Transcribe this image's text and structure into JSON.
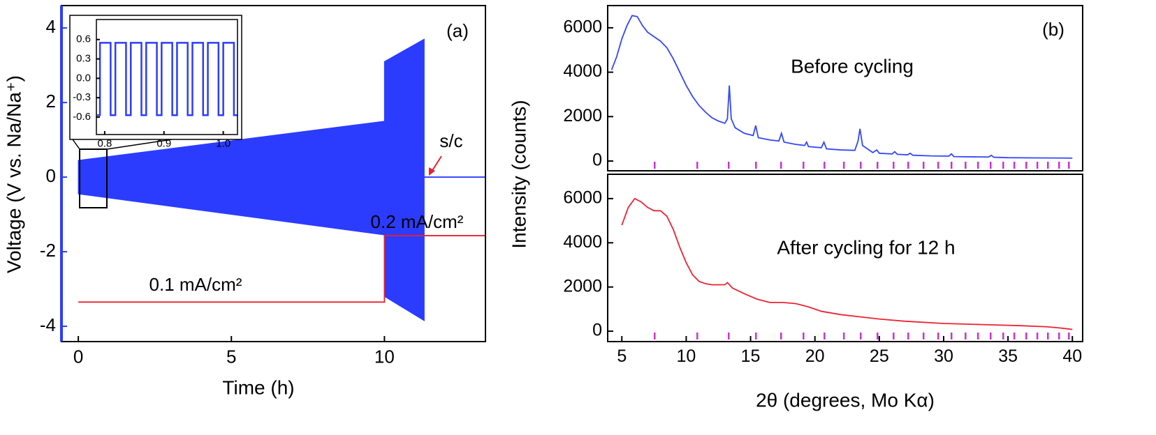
{
  "chart_data": [
    {
      "type": "line",
      "xlabel": "Time (h)",
      "ylabel": "Voltage (V vs. Na/Na⁺)",
      "y_axis_color": "#2b3cff",
      "xlim": [
        -0.55,
        13.3
      ],
      "ylim": [
        -4.41,
        4.6
      ],
      "xticks": [
        0,
        5,
        10
      ],
      "yticks": [
        -4,
        -2,
        0,
        2,
        4
      ],
      "series": [
        {
          "color": "#2b3cff",
          "x": [
            0,
            10,
            10,
            11.3
          ],
          "upper": [
            0.45,
            1.5,
            3.1,
            3.7
          ],
          "lower": [
            -0.45,
            -1.55,
            -3.2,
            -3.85
          ]
        },
        {
          "color": "#2b3cff",
          "x": [
            11.3,
            13.3
          ],
          "values": [
            0,
            0
          ]
        },
        {
          "color": "#e8202a",
          "x": [
            0,
            10,
            10,
            13.3
          ],
          "values": [
            -3.35,
            -3.35,
            -1.57,
            -1.57
          ]
        }
      ],
      "annotations": [
        "(a)",
        "s/c",
        "0.1 mA/cm²",
        "0.2 mA/cm²"
      ]
    },
    {
      "type": "line",
      "xlim": [
        0.786,
        1.024
      ],
      "ylim": [
        -0.87,
        0.91
      ],
      "xticks": [
        0.8,
        0.9,
        {
          "value": 1,
          "label": "1.0"
        }
      ],
      "yticks": [
        0.6,
        0.3,
        {
          "value": 0,
          "label": "0.0"
        },
        -0.3,
        -0.6
      ],
      "series": [
        {
          "color": "#2b3cff",
          "x": [
            0.787,
            0.792,
            0.792,
            0.81,
            0.81,
            0.818,
            0.818,
            0.836,
            0.836,
            0.844,
            0.844,
            0.862,
            0.862,
            0.87,
            0.87,
            0.888,
            0.888,
            0.896,
            0.896,
            0.914,
            0.914,
            0.922,
            0.922,
            0.94,
            0.94,
            0.948,
            0.948,
            0.966,
            0.966,
            0.974,
            0.974,
            0.992,
            0.992,
            1.0,
            1.0,
            1.018,
            1.018,
            1.024
          ],
          "values": [
            -0.57,
            -0.57,
            0.55,
            0.55,
            -0.57,
            -0.57,
            0.55,
            0.55,
            -0.57,
            -0.57,
            0.55,
            0.55,
            -0.57,
            -0.57,
            0.55,
            0.55,
            -0.57,
            -0.57,
            0.55,
            0.55,
            -0.57,
            -0.57,
            0.55,
            0.55,
            -0.57,
            -0.57,
            0.55,
            0.55,
            -0.57,
            -0.57,
            0.55,
            0.55,
            -0.57,
            -0.57,
            0.55,
            0.55,
            -0.57,
            -0.57
          ]
        }
      ]
    },
    {
      "type": "line",
      "ylabel": "Intensity (counts)",
      "xlim": [
        3.9,
        40.8
      ],
      "ylim": [
        -440,
        7000
      ],
      "yticks": [
        0,
        2000,
        4000,
        6000
      ],
      "reference_peaks": [
        7.55,
        10.86,
        13.3,
        15.42,
        17.37,
        19.11,
        20.74,
        22.25,
        23.56,
        24.86,
        26.11,
        27.25,
        28.44,
        29.58,
        30.61,
        31.7,
        32.67,
        33.65,
        34.63,
        35.49,
        36.42,
        37.28,
        38.1,
        38.97,
        39.73
      ],
      "reference_color": "#c832d2",
      "series": [
        {
          "color": "#3346ff",
          "x": [
            4.2,
            4.6,
            5.0,
            5.4,
            5.8,
            6.2,
            6.6,
            7.0,
            7.5,
            8.0,
            8.5,
            9.0,
            9.5,
            10.0,
            10.5,
            11.0,
            11.5,
            12.0,
            12.5,
            13.0,
            13.2,
            13.35,
            13.5,
            13.8,
            14.5,
            15.2,
            15.4,
            15.6,
            16.5,
            17.2,
            17.4,
            17.6,
            18.5,
            19.2,
            19.35,
            19.5,
            20.5,
            20.7,
            20.9,
            22.0,
            23.1,
            23.35,
            23.5,
            23.7,
            24.5,
            24.8,
            25.0,
            26.0,
            26.2,
            26.4,
            27.2,
            27.4,
            27.6,
            29.0,
            30.4,
            30.6,
            30.8,
            32.0,
            33.5,
            33.7,
            33.9,
            35.0,
            37.0,
            40.0
          ],
          "values": [
            4100,
            4700,
            5500,
            6100,
            6550,
            6500,
            6100,
            5800,
            5600,
            5400,
            5100,
            4600,
            4000,
            3400,
            2900,
            2500,
            2200,
            1950,
            1800,
            1700,
            1900,
            3400,
            1900,
            1500,
            1250,
            1150,
            1600,
            1050,
            950,
            900,
            1250,
            850,
            750,
            700,
            850,
            650,
            600,
            850,
            550,
            500,
            480,
            900,
            1450,
            700,
            380,
            500,
            350,
            320,
            420,
            300,
            280,
            350,
            260,
            230,
            220,
            320,
            200,
            190,
            180,
            260,
            170,
            150,
            140,
            130
          ]
        }
      ],
      "annotations": [
        "(b)",
        "Before cycling"
      ]
    },
    {
      "type": "line",
      "xlabel": "2θ (degrees, Mo Kα)",
      "xlim": [
        3.9,
        40.8
      ],
      "ylim": [
        -470,
        7100
      ],
      "xticks": [
        5,
        10,
        15,
        20,
        25,
        30,
        35,
        40
      ],
      "yticks": [
        0,
        2000,
        4000,
        6000
      ],
      "reference_peaks": [
        7.55,
        10.86,
        13.3,
        15.42,
        17.37,
        19.11,
        20.74,
        22.25,
        23.56,
        24.86,
        26.11,
        27.25,
        28.44,
        29.58,
        30.61,
        31.7,
        32.67,
        33.65,
        34.63,
        35.49,
        36.42,
        37.28,
        38.1,
        38.97,
        39.73
      ],
      "reference_color": "#c832d2",
      "series": [
        {
          "color": "#ee2233",
          "x": [
            5.0,
            5.5,
            6.0,
            6.5,
            7.0,
            7.5,
            8.0,
            8.5,
            9.0,
            9.5,
            10.0,
            10.5,
            11.0,
            11.5,
            12.0,
            12.5,
            13.0,
            13.2,
            13.6,
            14.5,
            15.5,
            16.5,
            17.5,
            18.5,
            19.5,
            20.5,
            22.0,
            23.5,
            25.0,
            27.0,
            30.0,
            33.0,
            36.0,
            38.0,
            39.0,
            40.0
          ],
          "values": [
            4800,
            5600,
            6000,
            5850,
            5600,
            5450,
            5450,
            5200,
            4600,
            3800,
            3100,
            2550,
            2250,
            2150,
            2100,
            2100,
            2100,
            2200,
            1950,
            1700,
            1450,
            1300,
            1300,
            1250,
            1100,
            900,
            750,
            650,
            550,
            450,
            350,
            300,
            250,
            200,
            150,
            80
          ]
        }
      ],
      "annotations": [
        "After cycling for 12 h"
      ]
    }
  ]
}
